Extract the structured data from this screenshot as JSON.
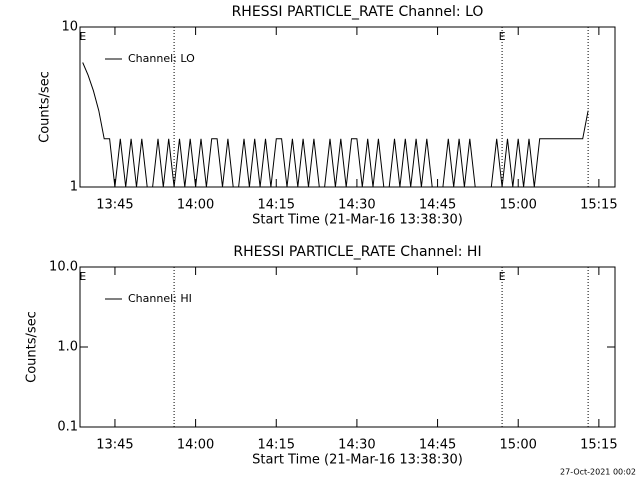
{
  "chart_data": [
    {
      "type": "line",
      "title": "RHESSI PARTICLE_RATE Channel: LO",
      "xlabel": "Start Time (21-Mar-16 13:38:30)",
      "ylabel": "Counts/sec",
      "log_y": true,
      "legend": "upper left",
      "xlim": [
        "13:38:30",
        "15:18"
      ],
      "xticks": [
        "13:45",
        "14:00",
        "14:15",
        "14:30",
        "14:45",
        "15:00",
        "15:15"
      ],
      "ylim": [
        1,
        10
      ],
      "yticks": [
        1,
        10
      ],
      "vlines": [
        "13:56",
        "14:57",
        "15:13"
      ],
      "annotations": [
        {
          "x": "13:39",
          "label": "E"
        },
        {
          "x": "14:57",
          "label": "E"
        }
      ],
      "x": [
        "13:39",
        "13:40",
        "13:41",
        "13:42",
        "13:43",
        "13:44",
        "13:45",
        "13:46",
        "13:47",
        "13:48",
        "13:49",
        "13:50",
        "13:51",
        "13:52",
        "13:53",
        "13:54",
        "13:55",
        "13:56",
        "13:57",
        "13:58",
        "13:59",
        "14:00",
        "14:01",
        "14:02",
        "14:03",
        "14:04",
        "14:05",
        "14:06",
        "14:07",
        "14:08",
        "14:09",
        "14:10",
        "14:11",
        "14:12",
        "14:13",
        "14:14",
        "14:15",
        "14:16",
        "14:17",
        "14:18",
        "14:19",
        "14:20",
        "14:21",
        "14:22",
        "14:23",
        "14:24",
        "14:25",
        "14:26",
        "14:27",
        "14:28",
        "14:29",
        "14:30",
        "14:31",
        "14:32",
        "14:33",
        "14:34",
        "14:35",
        "14:36",
        "14:37",
        "14:38",
        "14:39",
        "14:40",
        "14:41",
        "14:42",
        "14:43",
        "14:44",
        "14:45",
        "14:46",
        "14:47",
        "14:48",
        "14:49",
        "14:50",
        "14:51",
        "14:52",
        "14:53",
        "14:54",
        "14:55",
        "14:56",
        "14:57",
        "14:58",
        "14:59",
        "15:00",
        "15:01",
        "15:02",
        "15:03",
        "15:04",
        "15:05",
        "15:06",
        "15:07",
        "15:08",
        "15:09",
        "15:10",
        "15:11",
        "15:12",
        "15:13"
      ],
      "series": [
        {
          "name": "Channel: LO",
          "color": "#000000",
          "values": [
            6,
            5,
            4,
            3,
            2,
            2,
            1,
            2,
            1,
            2,
            1,
            2,
            1,
            1,
            2,
            1,
            2,
            1,
            2,
            1,
            2,
            1,
            2,
            1,
            2,
            2,
            1,
            2,
            1,
            1,
            2,
            1,
            2,
            1,
            2,
            1,
            2,
            2,
            1,
            2,
            1,
            2,
            1,
            2,
            1,
            1,
            2,
            1,
            2,
            1,
            2,
            2,
            1,
            2,
            1,
            2,
            1,
            1,
            2,
            1,
            2,
            1,
            2,
            1,
            2,
            1,
            1,
            1,
            2,
            1,
            2,
            1,
            2,
            1,
            1,
            1,
            1,
            2,
            1,
            2,
            1,
            2,
            1,
            2,
            1,
            2,
            2,
            2,
            2,
            2,
            2,
            2,
            2,
            2,
            3
          ]
        }
      ]
    },
    {
      "type": "line",
      "title": "RHESSI PARTICLE_RATE Channel: HI",
      "xlabel": "Start Time (21-Mar-16 13:38:30)",
      "ylabel": "Counts/sec",
      "log_y": true,
      "legend": "upper left",
      "xlim": [
        "13:38:30",
        "15:18"
      ],
      "xticks": [
        "13:45",
        "14:00",
        "14:15",
        "14:30",
        "14:45",
        "15:00",
        "15:15"
      ],
      "ylim": [
        0.1,
        10
      ],
      "yticks": [
        0.1,
        {
          "value": 1,
          "label": "1.0"
        },
        {
          "value": 10,
          "label": "10.0"
        }
      ],
      "vlines": [
        "13:56",
        "14:57",
        "15:13"
      ],
      "annotations": [
        {
          "x": "13:39",
          "label": "E"
        },
        {
          "x": "14:57",
          "label": "E"
        }
      ],
      "x": [],
      "series": [
        {
          "name": "Channel: HI",
          "color": "#000000",
          "values": []
        }
      ]
    }
  ],
  "footer": "27-Oct-2021 00:02"
}
